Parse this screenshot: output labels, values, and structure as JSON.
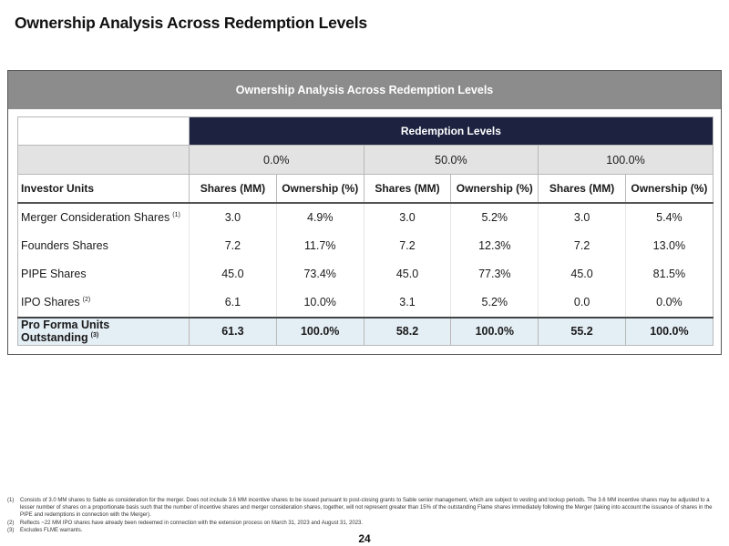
{
  "slide": {
    "title": "Ownership Analysis Across Redemption Levels",
    "page_number": "24"
  },
  "panel": {
    "header": "Ownership Analysis Across Redemption Levels"
  },
  "table": {
    "group_header": "Redemption Levels",
    "levels": [
      "0.0%",
      "50.0%",
      "100.0%"
    ],
    "columns": [
      "Investor Units",
      "Shares (MM)",
      "Ownership (%)",
      "Shares (MM)",
      "Ownership (%)",
      "Shares (MM)",
      "Ownership (%)"
    ],
    "rows": [
      {
        "label": "Merger Consideration Shares",
        "footnote": "(1)",
        "cells": [
          "3.0",
          "4.9%",
          "3.0",
          "5.2%",
          "3.0",
          "5.4%"
        ]
      },
      {
        "label": "Founders Shares",
        "footnote": "",
        "cells": [
          "7.2",
          "11.7%",
          "7.2",
          "12.3%",
          "7.2",
          "13.0%"
        ]
      },
      {
        "label": "PIPE Shares",
        "footnote": "",
        "cells": [
          "45.0",
          "73.4%",
          "45.0",
          "77.3%",
          "45.0",
          "81.5%"
        ]
      },
      {
        "label": "IPO Shares",
        "footnote": "(2)",
        "cells": [
          "6.1",
          "10.0%",
          "3.1",
          "5.2%",
          "0.0",
          "0.0%"
        ]
      }
    ],
    "total": {
      "label": "Pro Forma Units Outstanding",
      "footnote": "(3)",
      "cells": [
        "61.3",
        "100.0%",
        "58.2",
        "100.0%",
        "55.2",
        "100.0%"
      ]
    }
  },
  "footnotes": [
    {
      "num": "(1)",
      "text": "Consists of 3.0 MM shares to Sable as consideration for the merger. Does not include 3.6 MM incentive shares to be issued pursuant to post-closing grants to Sable senior management, which are subject to vesting and lockup periods. The 3.6 MM incentive shares may be adjusted to a lesser number of shares on a proportionate basis such that the number of incentive shares and merger consideration shares, together, will not represent greater than 15% of the outstanding Flame shares immediately following the Merger (taking into account the issuance of shares in the PIPE and redemptions in connection with the Merger)."
    },
    {
      "num": "(2)",
      "text": "Reflects ~22 MM IPO shares have already been redeemed in connection with the extension process on March 31, 2023 and August 31, 2023."
    },
    {
      "num": "(3)",
      "text": "Excludes FLME warrants."
    }
  ]
}
